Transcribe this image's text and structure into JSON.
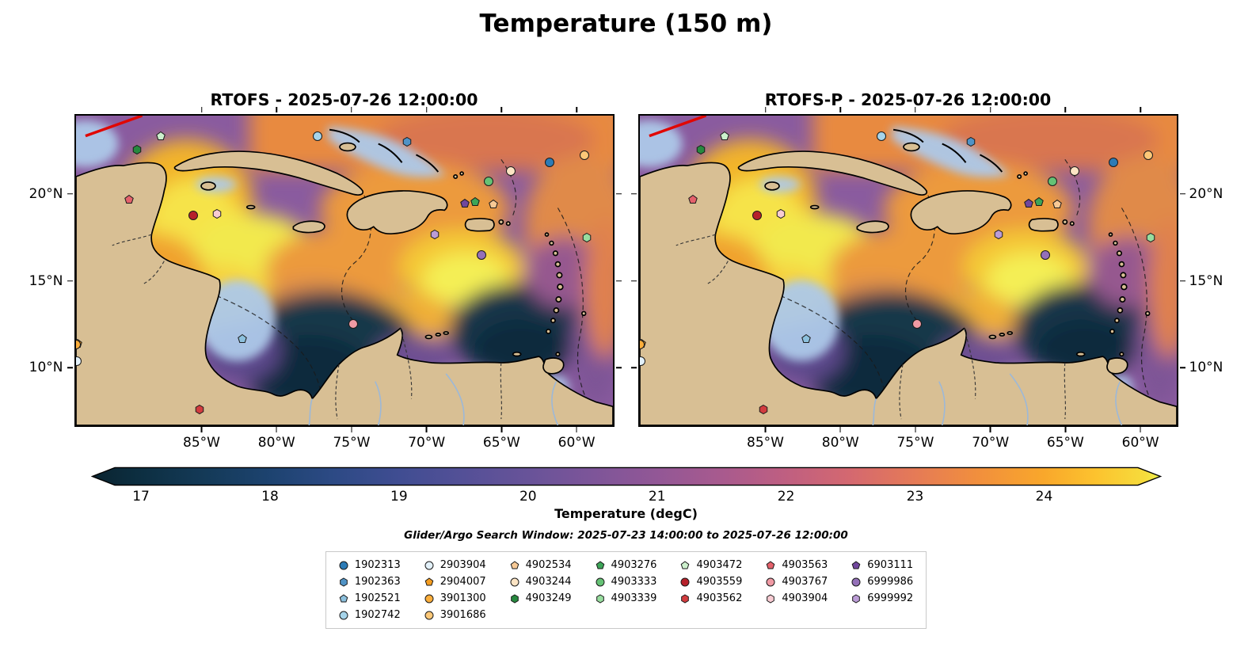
{
  "title": "Temperature (150 m)",
  "panels": [
    {
      "title": "RTOFS - 2025-07-26 12:00:00"
    },
    {
      "title": "RTOFS-P - 2025-07-26 12:00:00"
    }
  ],
  "colorbar": {
    "label": "Temperature (degC)"
  },
  "search_window": "Glider/Argo Search Window: 2025-07-23 14:00:00 to 2025-07-26 12:00:00",
  "chart_data": {
    "type": "heatmap",
    "title": "Temperature (150 m)",
    "panel_titles": [
      "RTOFS - 2025-07-26 12:00:00",
      "RTOFS-P - 2025-07-26 12:00:00"
    ],
    "model_date": "2025-07-26 12:00:00",
    "variable": "Temperature (degC)",
    "search_window": "Glider/Argo Search Window: 2025-07-23 14:00:00 to 2025-07-26 12:00:00",
    "colorbar": {
      "ticks": [
        17,
        18,
        19,
        20,
        21,
        22,
        23,
        24
      ],
      "vmin": 16.75,
      "vmax": 24.7,
      "extend": "both",
      "label": "Temperature (degC)"
    },
    "lon_range": [
      -93.5,
      -57.5
    ],
    "lat_range": [
      6.6,
      24.6
    ],
    "x_axis": {
      "ticks": [
        {
          "label": "85°W",
          "lon": -85
        },
        {
          "label": "80°W",
          "lon": -80
        },
        {
          "label": "75°W",
          "lon": -75
        },
        {
          "label": "70°W",
          "lon": -70
        },
        {
          "label": "65°W",
          "lon": -65
        },
        {
          "label": "60°W",
          "lon": -60
        }
      ]
    },
    "y_axis": {
      "ticks": [
        {
          "label": "20°N",
          "lat": 20
        },
        {
          "label": "15°N",
          "lat": 15
        },
        {
          "label": "10°N",
          "lat": 10
        }
      ]
    },
    "floats": [
      {
        "id": "1902313",
        "shape": "circle",
        "color": "#2c7bb6",
        "lon": -61.7,
        "lat": 21.9
      },
      {
        "id": "1902363",
        "shape": "hexagon",
        "color": "#5093c6",
        "lon": -71.3,
        "lat": 23.1
      },
      {
        "id": "1902521",
        "shape": "pentagon",
        "color": "#8cc0dd",
        "lon": -82.3,
        "lat": 11.6
      },
      {
        "id": "1902742",
        "shape": "circle",
        "color": "#a6d4ea",
        "lon": -77.3,
        "lat": 23.4
      },
      {
        "id": "2903904",
        "shape": "circle",
        "color": "#e3f1fa",
        "lon": -93.4,
        "lat": 10.35
      },
      {
        "id": "2904007",
        "shape": "pentagon",
        "color": "#f59d20",
        "lon": -93.35,
        "lat": 11.35
      },
      {
        "id": "3901300",
        "shape": "circle",
        "color": "#fcae3b",
        "lon": -93.45,
        "lat": 11.3
      },
      {
        "id": "3901686",
        "shape": "circle",
        "color": "#fdc878",
        "lon": -59.4,
        "lat": 22.3
      },
      {
        "id": "4902534",
        "shape": "pentagon",
        "color": "#f7c995",
        "lon": -65.5,
        "lat": 19.45
      },
      {
        "id": "4903244",
        "shape": "circle",
        "color": "#fce4c4",
        "lon": -64.3,
        "lat": 21.4
      },
      {
        "id": "4903249",
        "shape": "hexagon",
        "color": "#27893f",
        "lon": -89.4,
        "lat": 22.6
      },
      {
        "id": "4903276",
        "shape": "pentagon",
        "color": "#3da558",
        "lon": -66.7,
        "lat": 19.6
      },
      {
        "id": "4903333",
        "shape": "circle",
        "color": "#65c275",
        "lon": -65.8,
        "lat": 20.8
      },
      {
        "id": "4903339",
        "shape": "hexagon",
        "color": "#98dd9f",
        "lon": -59.2,
        "lat": 17.5
      },
      {
        "id": "4903472",
        "shape": "pentagon",
        "color": "#ccf0cc",
        "lon": -87.8,
        "lat": 23.4
      },
      {
        "id": "4903559",
        "shape": "circle",
        "color": "#b6212b",
        "lon": -85.6,
        "lat": 18.8
      },
      {
        "id": "4903562",
        "shape": "hexagon",
        "color": "#d23c3f",
        "lon": -85.2,
        "lat": 7.5
      },
      {
        "id": "4903563",
        "shape": "pentagon",
        "color": "#e4616b",
        "lon": -89.9,
        "lat": 19.7
      },
      {
        "id": "4903767",
        "shape": "circle",
        "color": "#f09aa4",
        "lon": -74.9,
        "lat": 12.5
      },
      {
        "id": "4903904",
        "shape": "hexagon",
        "color": "#f8ccd3",
        "lon": -84.0,
        "lat": 18.9
      },
      {
        "id": "6903111",
        "shape": "pentagon",
        "color": "#71479d",
        "lon": -67.4,
        "lat": 19.5
      },
      {
        "id": "6999986",
        "shape": "circle",
        "color": "#9470b8",
        "lon": -66.3,
        "lat": 16.5
      },
      {
        "id": "6999992",
        "shape": "hexagon",
        "color": "#bb9cd6",
        "lon": -69.4,
        "lat": 17.7
      }
    ],
    "legend_columns": [
      [
        "1902313",
        "1902363",
        "1902521",
        "1902742"
      ],
      [
        "2903904",
        "2904007",
        "3901300",
        "3901686"
      ],
      [
        "4902534",
        "4903244",
        "4903249"
      ],
      [
        "4903276",
        "4903333",
        "4903339"
      ],
      [
        "4903472",
        "4903559",
        "4903562"
      ],
      [
        "4903563",
        "4903767",
        "4903904"
      ],
      [
        "6903111",
        "6999986",
        "6999992"
      ]
    ]
  }
}
